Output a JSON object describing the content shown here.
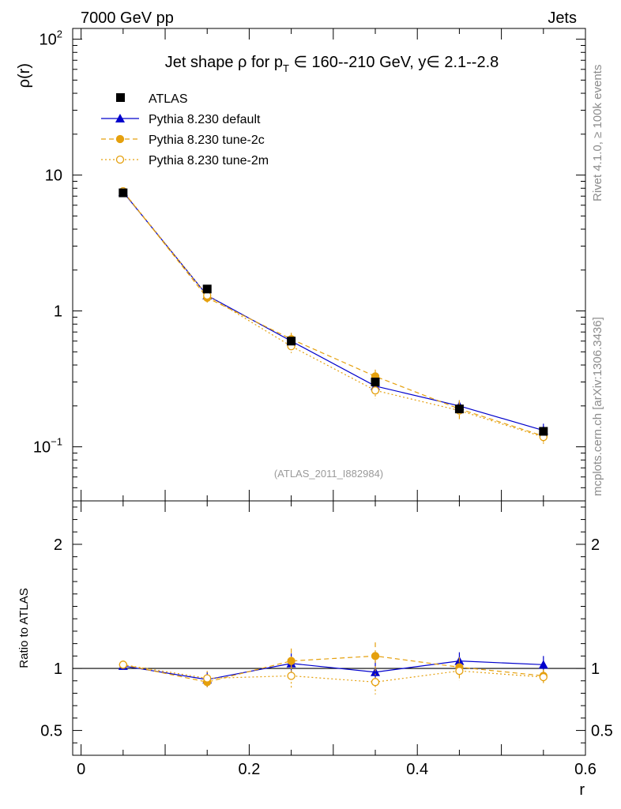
{
  "header": {
    "left": "7000 GeV pp",
    "right": "Jets"
  },
  "side_labels": {
    "rivet": "Rivet 4.1.0, ≥ 100k events",
    "mcplots": "mcplots.cern.ch [arXiv:1306.3436]"
  },
  "analysis_ref": "(ATLAS_2011_I882984)",
  "colors": {
    "atlas": "#000000",
    "default": "#0000cc",
    "tune2c": "#e5a00d",
    "tune2m": "#e5a00d"
  },
  "chart_data": [
    {
      "type": "line",
      "title_parts": {
        "pre": "Jet shape ρ for p",
        "sub": "T",
        "mid": " ∈ 160--210 GeV, y∈ 2.1--2.8"
      },
      "xlabel": "r",
      "ylabel": "ρ(r)",
      "yscale": "log",
      "xlim": [
        -0.01,
        0.6
      ],
      "ylim": [
        0.04,
        120
      ],
      "y_ticks": [
        {
          "value": 0.1,
          "base": "10",
          "exp": "−1"
        },
        {
          "value": 1,
          "base": "1",
          "exp": ""
        },
        {
          "value": 10,
          "base": "10",
          "exp": ""
        },
        {
          "value": 100,
          "base": "10",
          "exp": "2"
        }
      ],
      "x": [
        0.05,
        0.15,
        0.25,
        0.35,
        0.45,
        0.55
      ],
      "legend": [
        "ATLAS",
        "Pythia 8.230 default",
        "Pythia 8.230 tune-2c",
        "Pythia 8.230 tune-2m"
      ],
      "series": [
        {
          "name": "ATLAS",
          "values": [
            7.4,
            1.45,
            0.6,
            0.3,
            0.19,
            0.13
          ]
        },
        {
          "name": "Pythia 8.230 default",
          "values": [
            7.5,
            1.3,
            0.6,
            0.28,
            0.2,
            0.132
          ],
          "errors": [
            0.2,
            0.06,
            0.06,
            0.03,
            0.02,
            0.016
          ]
        },
        {
          "name": "Pythia 8.230 tune-2c",
          "values": [
            7.6,
            1.25,
            0.62,
            0.33,
            0.19,
            0.12
          ],
          "errors": [
            0.2,
            0.1,
            0.07,
            0.04,
            0.03,
            0.014
          ]
        },
        {
          "name": "Pythia 8.230 tune-2m",
          "values": [
            7.6,
            1.3,
            0.55,
            0.26,
            0.185,
            0.118
          ],
          "errors": [
            0.2,
            0.1,
            0.06,
            0.035,
            0.025,
            0.013
          ]
        }
      ]
    },
    {
      "type": "line",
      "xlabel": "r",
      "ylabel": "Ratio to ATLAS",
      "xlim": [
        -0.01,
        0.6
      ],
      "ylim": [
        0.3,
        2.35
      ],
      "y_ticks": [
        "0.5",
        "1",
        "2"
      ],
      "x_ticks": [
        "0",
        "0.2",
        "0.4",
        "0.6"
      ],
      "reference": 1,
      "series": [
        {
          "name": "Pythia 8.230 default",
          "values": [
            1.02,
            0.91,
            1.04,
            0.97,
            1.06,
            1.03
          ],
          "errors": [
            0.01,
            0.06,
            0.08,
            0.09,
            0.07,
            0.07
          ]
        },
        {
          "name": "Pythia 8.230 tune-2c",
          "values": [
            1.03,
            0.89,
            1.06,
            1.1,
            1.01,
            0.94
          ],
          "errors": [
            0.01,
            0.06,
            0.1,
            0.11,
            0.08,
            0.05
          ]
        },
        {
          "name": "Pythia 8.230 tune-2m",
          "values": [
            1.03,
            0.92,
            0.94,
            0.89,
            0.98,
            0.93
          ],
          "errors": [
            0.01,
            0.06,
            0.11,
            0.1,
            0.08,
            0.06
          ]
        }
      ]
    }
  ]
}
